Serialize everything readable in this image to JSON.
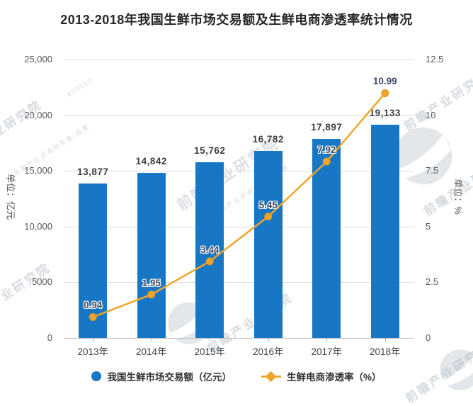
{
  "title": "2013-2018年我国生鲜市场交易额及生鲜电商渗透率统计情况",
  "watermark": {
    "text": "前瞻产业研究院",
    "subtext": "中国产业咨询领导者(股票",
    "digits": "839599"
  },
  "chart_data": {
    "type": "bar+line",
    "title": "2013-2018年我国生鲜市场交易额及生鲜电商渗透率统计情况",
    "categories": [
      "2013年",
      "2014年",
      "2015年",
      "2016年",
      "2017年",
      "2018年"
    ],
    "series": [
      {
        "name": "我国生鲜市场交易额（亿元）",
        "type": "bar",
        "axis": "left",
        "color": "#1777c4",
        "values": [
          13877,
          14842,
          15762,
          16782,
          17897,
          19133
        ],
        "labels": [
          "13,877",
          "14,842",
          "15,762",
          "16,782",
          "17,897",
          "19,133"
        ]
      },
      {
        "name": "生鲜电商渗透率（%）",
        "type": "line",
        "axis": "right",
        "color": "#f0a62b",
        "marker_stroke": "#de9422",
        "values": [
          0.94,
          1.95,
          3.44,
          5.45,
          7.92,
          10.99
        ],
        "labels": [
          "0.94",
          "1.95",
          "3.44",
          "5.45",
          "7.92",
          "10.99"
        ]
      }
    ],
    "left_axis": {
      "unit": "单位：亿元",
      "min": 0,
      "max": 25000,
      "ticks": [
        "25,000",
        "20,000",
        "15,000",
        "10,000",
        "5000",
        "0"
      ]
    },
    "right_axis": {
      "unit": "单位：%",
      "min": 0,
      "max": 12.5,
      "ticks": [
        "12.5",
        "10",
        "7.5",
        "5",
        "2.5",
        "0"
      ]
    },
    "grid": true,
    "legend_position": "bottom"
  },
  "legend": [
    {
      "label": "我国生鲜市场交易额（亿元）",
      "marker": "circle",
      "color": "#1777c4"
    },
    {
      "label": "生鲜电商渗透率（%）",
      "marker": "line-diamond",
      "color": "#f0a62b"
    }
  ]
}
